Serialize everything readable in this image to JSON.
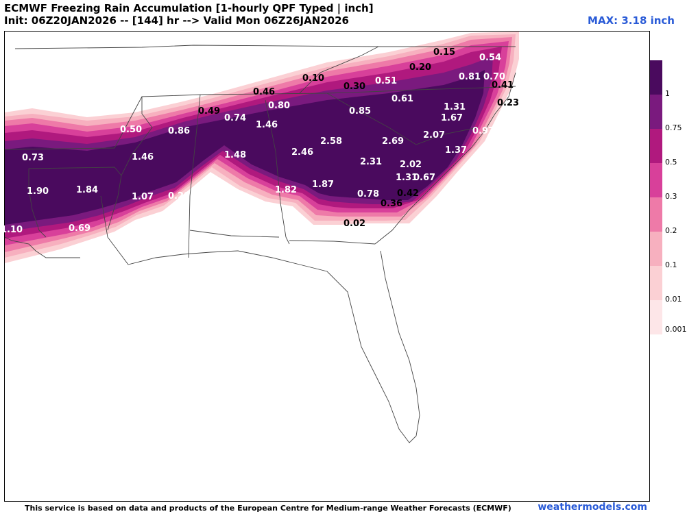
{
  "header": {
    "title": "ECMWF Freezing Rain Accumulation [1-hourly QPF Typed | inch]",
    "subtitle": "Init: 06Z20JAN2026 -- [144] hr --> Valid Mon 06Z26JAN2026",
    "max_label": "MAX: 3.18 inch"
  },
  "legend": {
    "bins": [
      {
        "label": "1",
        "color": "#4a0a5e"
      },
      {
        "label": "0.75",
        "color": "#7a1a7e"
      },
      {
        "label": "0.5",
        "color": "#b0197e"
      },
      {
        "label": "0.3",
        "color": "#d8409a"
      },
      {
        "label": "0.2",
        "color": "#ee7aa8"
      },
      {
        "label": "0.1",
        "color": "#f7b0bf"
      },
      {
        "label": "0.01",
        "color": "#fbd0d4"
      },
      {
        "label": "0.001",
        "color": "#fde6e8"
      }
    ]
  },
  "values": [
    {
      "text": "0.15",
      "dark": false
    },
    {
      "text": "0.54",
      "dark": true
    },
    {
      "text": "0.20",
      "dark": false
    },
    {
      "text": "0.81",
      "dark": true
    },
    {
      "text": "0.70",
      "dark": true
    },
    {
      "text": "0.10",
      "dark": false
    },
    {
      "text": "0.51",
      "dark": true
    },
    {
      "text": "0.41",
      "dark": false
    },
    {
      "text": "0.30",
      "dark": false
    },
    {
      "text": "0.46",
      "dark": false
    },
    {
      "text": "0.61",
      "dark": true
    },
    {
      "text": "0.23",
      "dark": false
    },
    {
      "text": "0.80",
      "dark": true
    },
    {
      "text": "1.31",
      "dark": true
    },
    {
      "text": "0.49",
      "dark": false
    },
    {
      "text": "0.85",
      "dark": true
    },
    {
      "text": "0.74",
      "dark": true
    },
    {
      "text": "1.67",
      "dark": true
    },
    {
      "text": "1.46",
      "dark": true
    },
    {
      "text": "0.50",
      "dark": true
    },
    {
      "text": "0.86",
      "dark": true
    },
    {
      "text": "0.97",
      "dark": true
    },
    {
      "text": "2.58",
      "dark": true
    },
    {
      "text": "2.69",
      "dark": true
    },
    {
      "text": "2.07",
      "dark": true
    },
    {
      "text": "0.73",
      "dark": true
    },
    {
      "text": "1.46",
      "dark": true
    },
    {
      "text": "1.48",
      "dark": true
    },
    {
      "text": "2.46",
      "dark": true
    },
    {
      "text": "1.37",
      "dark": true
    },
    {
      "text": "2.31",
      "dark": true
    },
    {
      "text": "2.02",
      "dark": true
    },
    {
      "text": "1.31",
      "dark": true
    },
    {
      "text": "0.67",
      "dark": true
    },
    {
      "text": "1.90",
      "dark": true
    },
    {
      "text": "1.84",
      "dark": true
    },
    {
      "text": "1.82",
      "dark": true
    },
    {
      "text": "1.87",
      "dark": true
    },
    {
      "text": "0.42",
      "dark": false
    },
    {
      "text": "1.07",
      "dark": true
    },
    {
      "text": "0.28",
      "dark": true
    },
    {
      "text": "0.78",
      "dark": true
    },
    {
      "text": "0.36",
      "dark": false
    },
    {
      "text": "1.10",
      "dark": true
    },
    {
      "text": "0.69",
      "dark": true
    },
    {
      "text": "0.02",
      "dark": false
    }
  ],
  "footer": {
    "credit": "This service is based on data and products of the European Centre for Medium-range Weather Forecasts (ECMWF)",
    "brand": "weathermodels.com"
  }
}
